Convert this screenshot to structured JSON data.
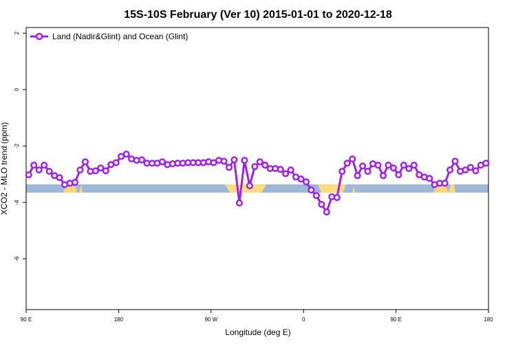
{
  "chart_data": {
    "type": "line",
    "title": "15S-10S February (Ver 10)   2015-01-01 to 2020-12-18",
    "x_label": "Longitude (deg E)",
    "y_label": "XCO2 - MLO trend (ppm)",
    "xlim": [
      90,
      540
    ],
    "ylim": [
      -7.8,
      2.2
    ],
    "xticks": [
      {
        "value": 90,
        "label": "90 E"
      },
      {
        "value": 180,
        "label": "180"
      },
      {
        "value": 270,
        "label": "90 W"
      },
      {
        "value": 360,
        "label": "0"
      },
      {
        "value": 450,
        "label": "90 E"
      },
      {
        "value": 540,
        "label": "180"
      }
    ],
    "yticks": [
      2,
      0,
      -2,
      -4,
      -6
    ],
    "legend": "top-left",
    "x": [
      92.5,
      97.5,
      102.5,
      107.5,
      112.5,
      117.5,
      122.5,
      127.5,
      132.5,
      137.5,
      142.5,
      147.5,
      152.5,
      157.5,
      162.5,
      167.5,
      172.5,
      177.5,
      182.5,
      187.5,
      192.5,
      197.5,
      202.5,
      207.5,
      212.5,
      217.5,
      222.5,
      227.5,
      232.5,
      237.5,
      242.5,
      247.5,
      252.5,
      257.5,
      262.5,
      267.5,
      272.5,
      277.5,
      282.5,
      287.5,
      292.5,
      297.5,
      302.5,
      307.5,
      312.5,
      317.5,
      322.5,
      327.5,
      332.5,
      337.5,
      342.5,
      347.5,
      352.5,
      357.5,
      362.5,
      367.5,
      372.5,
      377.5,
      382.5,
      387.5,
      392.5,
      397.5,
      402.5,
      407.5,
      412.5,
      417.5,
      422.5,
      427.5,
      432.5,
      437.5,
      442.5,
      447.5,
      452.5,
      457.5,
      462.5,
      467.5,
      472.5,
      477.5,
      482.5,
      487.5,
      492.5,
      497.5,
      502.5,
      507.5,
      512.5,
      517.5,
      522.5,
      527.5,
      532.5,
      537.5
    ],
    "series": [
      {
        "name": "Land (Nadir&Glint) and Ocean (Glint)",
        "color": "#a020f0",
        "values": [
          -3.02,
          -2.68,
          -2.85,
          -2.68,
          -2.9,
          -3.05,
          -3.12,
          -3.37,
          -3.32,
          -3.29,
          -2.85,
          -2.56,
          -2.9,
          -2.88,
          -2.78,
          -2.88,
          -2.66,
          -2.59,
          -2.37,
          -2.29,
          -2.46,
          -2.51,
          -2.49,
          -2.61,
          -2.61,
          -2.61,
          -2.56,
          -2.66,
          -2.63,
          -2.61,
          -2.61,
          -2.59,
          -2.59,
          -2.59,
          -2.59,
          -2.56,
          -2.59,
          -2.51,
          -2.54,
          -2.76,
          -2.49,
          -4.02,
          -2.51,
          -3.41,
          -2.73,
          -2.56,
          -2.68,
          -2.8,
          -2.8,
          -2.83,
          -2.98,
          -2.85,
          -3.1,
          -3.17,
          -3.27,
          -3.56,
          -3.76,
          -4.07,
          -4.34,
          -3.8,
          -3.83,
          -2.9,
          -2.61,
          -2.46,
          -3.05,
          -2.71,
          -2.9,
          -2.63,
          -2.68,
          -3.05,
          -2.68,
          -2.78,
          -3.02,
          -2.68,
          -2.8,
          -2.68,
          -3.02,
          -3.1,
          -3.15,
          -3.37,
          -3.32,
          -3.32,
          -2.85,
          -2.54,
          -2.9,
          -2.85,
          -2.76,
          -2.88,
          -2.68,
          -2.61
        ]
      }
    ]
  }
}
